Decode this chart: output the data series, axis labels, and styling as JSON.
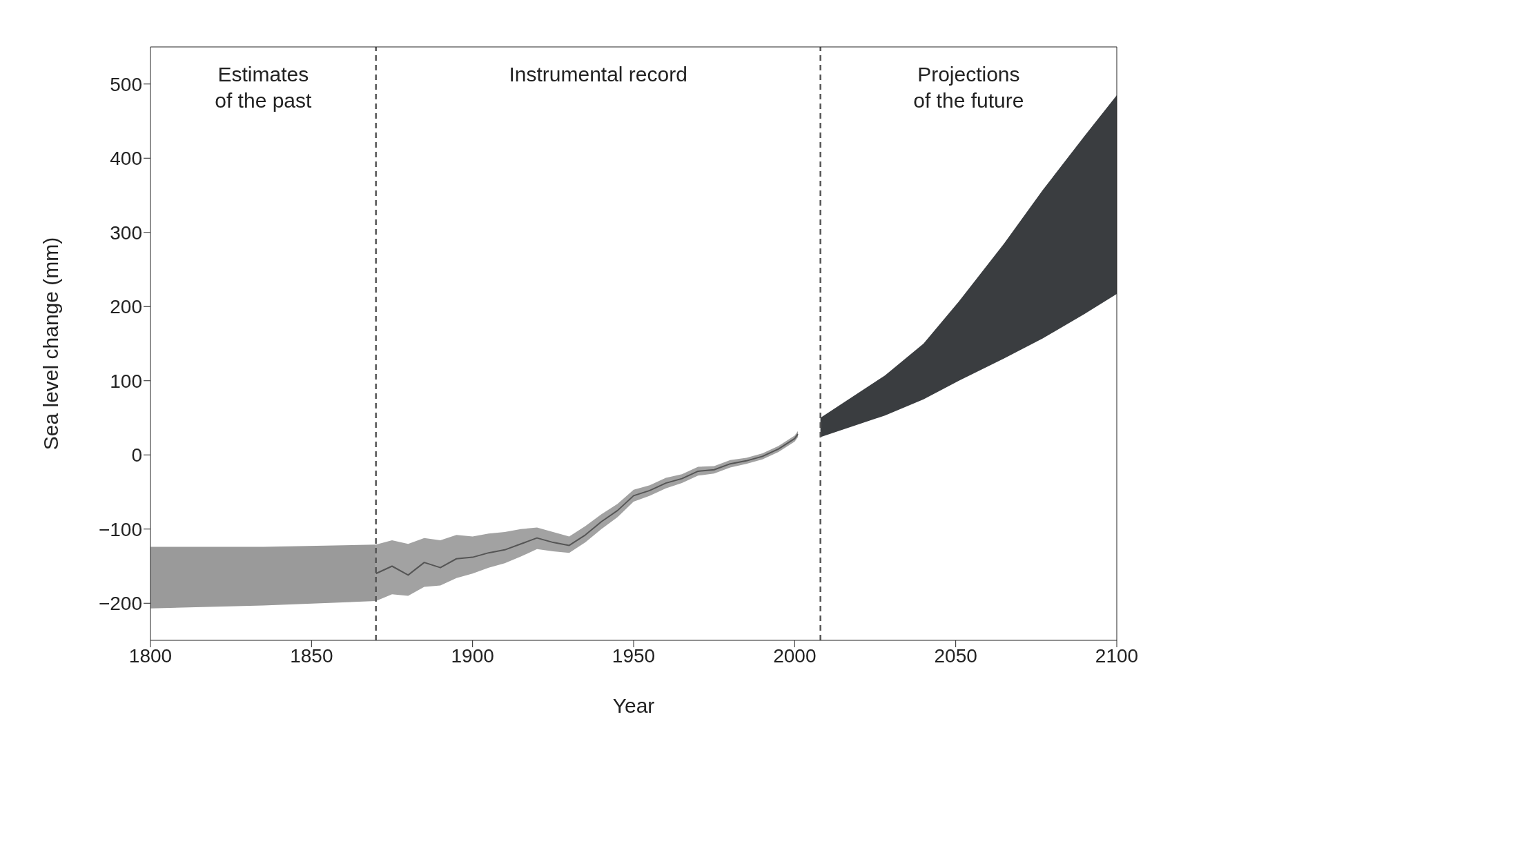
{
  "chart_data": {
    "type": "line",
    "xlabel": "Year",
    "ylabel": "Sea level change (mm)",
    "xlim": [
      1800,
      2100
    ],
    "xticks": [
      1800,
      1850,
      1900,
      1950,
      2000,
      2050,
      2100
    ],
    "ylim": [
      -250,
      550
    ],
    "yticks": [
      -200,
      -100,
      0,
      100,
      200,
      300,
      400,
      500
    ],
    "grid": false,
    "legend": false,
    "series": [
      {
        "type": "area",
        "color": "#9a9a9a",
        "x": [
          1800,
          1835,
          1870
        ],
        "values": [
          null,
          null,
          null
        ],
        "lower": [
          -207,
          -203,
          -197
        ],
        "upper": [
          -124,
          -124,
          -121
        ]
      },
      {
        "color": "#555555",
        "x": [
          1870,
          1875,
          1880,
          1885,
          1890,
          1895,
          1900,
          1905,
          1910,
          1915,
          1920,
          1925,
          1930,
          1935,
          1940,
          1945,
          1950,
          1955,
          1960,
          1965,
          1970,
          1975,
          1980,
          1985,
          1990,
          1995,
          2000,
          2001
        ],
        "values": [
          -160,
          -150,
          -162,
          -145,
          -152,
          -140,
          -138,
          -132,
          -128,
          -120,
          -112,
          -118,
          -122,
          -108,
          -90,
          -75,
          -55,
          -48,
          -38,
          -32,
          -22,
          -20,
          -12,
          -8,
          -2,
          8,
          22,
          28
        ],
        "lower": [
          -197,
          -188,
          -190,
          -178,
          -176,
          -166,
          -160,
          -152,
          -146,
          -137,
          -127,
          -130,
          -132,
          -118,
          -100,
          -84,
          -63,
          -55,
          -45,
          -38,
          -28,
          -25,
          -17,
          -12,
          -6,
          4,
          18,
          24
        ],
        "upper": [
          -121,
          -115,
          -120,
          -112,
          -115,
          -108,
          -110,
          -106,
          -104,
          -100,
          -98,
          -104,
          -110,
          -96,
          -80,
          -66,
          -47,
          -41,
          -31,
          -26,
          -16,
          -15,
          -7,
          -4,
          2,
          12,
          26,
          32
        ]
      },
      {
        "type": "area",
        "color": "#3a3d40",
        "x": [
          2008,
          2028,
          2040,
          2051,
          2065,
          2077,
          2090,
          2100
        ],
        "values": [
          null,
          null,
          null,
          null,
          null,
          null,
          null,
          null
        ],
        "lower": [
          24,
          53,
          75,
          100,
          130,
          157,
          190,
          217
        ],
        "upper": [
          50,
          107,
          150,
          207,
          285,
          357,
          430,
          485
        ]
      }
    ],
    "ref_lines": [
      {
        "axis": "x",
        "value": 1870,
        "line_style": "dashed",
        "color": "#555555"
      },
      {
        "axis": "x",
        "value": 2008,
        "line_style": "dashed",
        "color": "#555555"
      }
    ],
    "annotations": [
      "Estimates\nof the past",
      "Instrumental record",
      "Projections\nof the future"
    ]
  }
}
